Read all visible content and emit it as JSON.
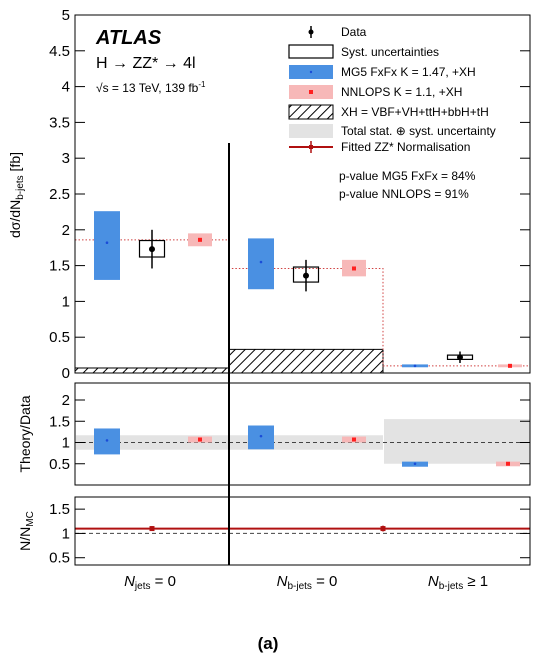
{
  "figure_label": "(a)",
  "colors": {
    "mg5": "#4a90e2",
    "nnlops": "#f7b8b8",
    "nnlops_marker": "#ff2020",
    "mg5_marker": "#1a4cd8",
    "fitted": "#b01010",
    "band": "#e3e3e3",
    "nnlops_line": "#d04040"
  },
  "chart_data": [
    {
      "type": "bar",
      "panel": "main",
      "ylabel": "dσ/dN b-jets [fb]",
      "ylim": [
        0,
        5
      ],
      "yticks": [
        "0",
        "0.5",
        "1",
        "1.5",
        "2",
        "2.5",
        "3",
        "3.5",
        "4",
        "4.5",
        "5"
      ],
      "categories": [
        "N jets = 0",
        "N b-jets = 0",
        "N b-jets ≥ 1"
      ],
      "series": [
        {
          "name": "Data",
          "values": [
            1.73,
            1.36,
            0.22
          ],
          "errors": [
            0.27,
            0.22,
            0.08
          ]
        },
        {
          "name": "Syst. uncertainties",
          "values": [
            1.73,
            1.36,
            0.22
          ],
          "syst_low": [
            1.62,
            1.27,
            0.19
          ],
          "syst_high": [
            1.85,
            1.48,
            0.25
          ]
        },
        {
          "name": "MG5 FxFx K = 1.47, +XH",
          "values": [
            1.82,
            1.55,
            0.1
          ],
          "low": [
            1.3,
            1.17,
            0.08
          ],
          "high": [
            2.26,
            1.88,
            0.12
          ]
        },
        {
          "name": "NNLOPS K = 1.1, +XH",
          "values": [
            1.86,
            1.46,
            0.1
          ],
          "low": [
            1.77,
            1.35,
            0.08
          ],
          "high": [
            1.95,
            1.58,
            0.12
          ]
        },
        {
          "name": "XH = VBF+VH+ttH+bbH+tH",
          "values": [
            0.07,
            0.33,
            0.0
          ]
        }
      ],
      "legend": {
        "data": "Data",
        "syst": "Syst. uncertainties",
        "mg5": "MG5 FxFx K = 1.47, +XH",
        "nnlops": "NNLOPS K = 1.1, +XH",
        "xh": "XH = VBF+VH+ttH+bbH+tH",
        "total": "Total stat. ⊕ syst. uncertainty",
        "fitted": "Fitted ZZ* Normalisation"
      },
      "annotations": {
        "atlas": "ATLAS",
        "process": "H → ZZ* → 4l",
        "energy": "√s = 13 TeV, 139 fb",
        "energy_sup": "-1",
        "pvalue_mg5": "p-value MG5 FxFx = 84%",
        "pvalue_nnlops": "p-value NNLOPS = 91%"
      }
    },
    {
      "type": "bar",
      "panel": "ratio",
      "ylabel": "Theory/Data",
      "ylim": [
        0,
        2.4
      ],
      "yticks": [
        "0.5",
        "1",
        "1.5",
        "2"
      ],
      "categories": [
        "N jets = 0",
        "N b-jets = 0",
        "N b-jets ≥ 1"
      ],
      "band": {
        "low": [
          0.83,
          0.83,
          0.5
        ],
        "high": [
          1.17,
          1.17,
          1.55
        ]
      },
      "series": [
        {
          "name": "MG5 FxFx K = 1.47, +XH",
          "values": [
            1.05,
            1.15,
            0.5
          ],
          "low": [
            0.72,
            0.84,
            0.43
          ],
          "high": [
            1.33,
            1.4,
            0.55
          ]
        },
        {
          "name": "NNLOPS K = 1.1, +XH",
          "values": [
            1.07,
            1.07,
            0.5
          ],
          "low": [
            1.0,
            1.0,
            0.44
          ],
          "high": [
            1.14,
            1.14,
            0.55
          ]
        }
      ]
    },
    {
      "type": "scatter",
      "panel": "normalisation",
      "ylabel": "N/N MC",
      "ylim": [
        0.35,
        1.75
      ],
      "yticks": [
        "0.5",
        "1",
        "1.5"
      ],
      "categories": [
        "N jets = 0",
        "N b-jets = 0",
        "N b-jets ≥ 1"
      ],
      "series": [
        {
          "name": "Fitted ZZ* Normalisation",
          "x_categories": [
            "N jets = 0",
            "N b-jets = 0"
          ],
          "values": [
            1.1,
            1.1
          ],
          "errors": [
            0.05,
            0.06
          ]
        }
      ]
    }
  ],
  "xlabels": {
    "cat1_main": "N",
    "cat1_sub": "jets",
    "cat1_rest": " = 0",
    "cat2_main": "N",
    "cat2_sub": "b-jets",
    "cat2_rest": " = 0",
    "cat3_main": "N",
    "cat3_sub": "b-jets",
    "cat3_rest": " ≥ 1"
  },
  "axis_labels": {
    "main_prefix": "dσ/dN",
    "main_sub": "b-jets",
    "main_unit": " [fb]",
    "ratio": "Theory/Data",
    "norm_prefix": "N/N",
    "norm_sub": "MC"
  }
}
